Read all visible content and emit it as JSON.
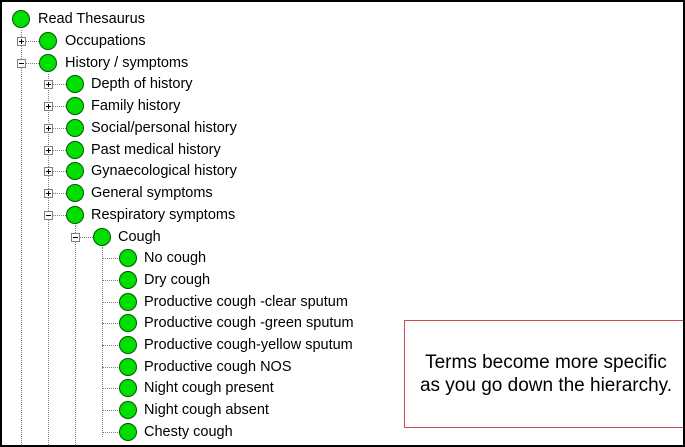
{
  "tree": {
    "root": "Read Thesaurus",
    "level1": [
      {
        "label": "Occupations",
        "expanded": false
      },
      {
        "label": "History / symptoms",
        "expanded": true
      }
    ],
    "history_children": [
      {
        "label": "Depth of history",
        "expanded": false
      },
      {
        "label": "Family history",
        "expanded": false
      },
      {
        "label": "Social/personal history",
        "expanded": false
      },
      {
        "label": "Past medical history",
        "expanded": false
      },
      {
        "label": "Gynaecological history",
        "expanded": false
      },
      {
        "label": "General symptoms",
        "expanded": false
      },
      {
        "label": "Respiratory symptoms",
        "expanded": true
      }
    ],
    "respiratory_children": [
      {
        "label": "Cough",
        "expanded": true
      }
    ],
    "cough_children": [
      "No cough",
      "Dry cough",
      "Productive cough -clear sputum",
      "Productive cough -green sputum",
      "Productive cough-yellow sputum",
      "Productive cough NOS",
      "Night cough present",
      "Night cough absent",
      "Chesty cough"
    ]
  },
  "callout": {
    "text": "Terms become more specific as you go down the hierarchy."
  },
  "colors": {
    "node": "#00e000",
    "callout_border": "#c0504d"
  },
  "icons": {
    "node": "green-circle-icon",
    "expand": "plus-box-icon",
    "collapse": "minus-box-icon"
  }
}
